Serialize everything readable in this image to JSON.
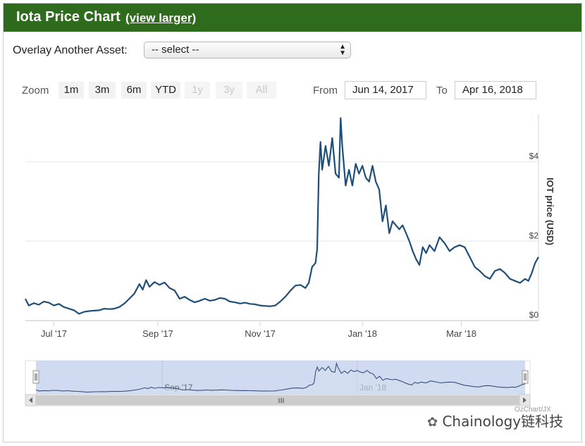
{
  "header": {
    "title": "Iota Price Chart",
    "view_larger": "(view larger)"
  },
  "overlay": {
    "label": "Overlay Another Asset:",
    "selected": "-- select --"
  },
  "zoom": {
    "label": "Zoom",
    "buttons": [
      {
        "label": "1m",
        "enabled": true
      },
      {
        "label": "3m",
        "enabled": true
      },
      {
        "label": "6m",
        "enabled": true
      },
      {
        "label": "YTD",
        "enabled": true
      },
      {
        "label": "1y",
        "enabled": false
      },
      {
        "label": "3y",
        "enabled": false
      },
      {
        "label": "All",
        "enabled": false
      }
    ]
  },
  "range": {
    "from_label": "From",
    "from_value": "Jun 14, 2017",
    "to_label": "To",
    "to_value": "Apr 16, 2018"
  },
  "credits": "OzChart/JX",
  "watermark": "Chainology链科技",
  "chart_data": {
    "type": "line",
    "ylabel": "IOT price (USD)",
    "ylim": [
      0,
      5.2
    ],
    "yticks": [
      {
        "value": 0,
        "label": "$0"
      },
      {
        "value": 2,
        "label": "$2"
      },
      {
        "value": 4,
        "label": "$4"
      }
    ],
    "x_start": "2017-06-14",
    "x_end": "2018-04-16",
    "xticks": [
      {
        "date": "2017-07-01",
        "label": "Jul '17"
      },
      {
        "date": "2017-09-01",
        "label": "Sep '17"
      },
      {
        "date": "2017-11-01",
        "label": "Nov '17"
      },
      {
        "date": "2018-01-01",
        "label": "Jan '18"
      },
      {
        "date": "2018-03-01",
        "label": "Mar '18"
      }
    ],
    "navigator_labels": [
      {
        "date": "2017-09-01",
        "label": "Sep '17"
      },
      {
        "date": "2018-01-01",
        "label": "Jan '18"
      }
    ],
    "grid": true,
    "series": [
      {
        "color": "#1f4e79",
        "points": [
          [
            "2017-06-14",
            0.55
          ],
          [
            "2017-06-16",
            0.38
          ],
          [
            "2017-06-19",
            0.44
          ],
          [
            "2017-06-22",
            0.4
          ],
          [
            "2017-06-25",
            0.48
          ],
          [
            "2017-06-28",
            0.45
          ],
          [
            "2017-07-01",
            0.38
          ],
          [
            "2017-07-04",
            0.42
          ],
          [
            "2017-07-07",
            0.34
          ],
          [
            "2017-07-10",
            0.3
          ],
          [
            "2017-07-13",
            0.26
          ],
          [
            "2017-07-16",
            0.17
          ],
          [
            "2017-07-19",
            0.22
          ],
          [
            "2017-07-22",
            0.24
          ],
          [
            "2017-07-25",
            0.25
          ],
          [
            "2017-07-28",
            0.26
          ],
          [
            "2017-07-31",
            0.3
          ],
          [
            "2017-08-03",
            0.29
          ],
          [
            "2017-08-06",
            0.3
          ],
          [
            "2017-08-09",
            0.34
          ],
          [
            "2017-08-12",
            0.43
          ],
          [
            "2017-08-15",
            0.55
          ],
          [
            "2017-08-18",
            0.68
          ],
          [
            "2017-08-21",
            0.92
          ],
          [
            "2017-08-23",
            0.78
          ],
          [
            "2017-08-25",
            1.02
          ],
          [
            "2017-08-27",
            0.85
          ],
          [
            "2017-08-30",
            0.97
          ],
          [
            "2017-09-02",
            0.9
          ],
          [
            "2017-09-05",
            0.96
          ],
          [
            "2017-09-08",
            0.82
          ],
          [
            "2017-09-11",
            0.76
          ],
          [
            "2017-09-14",
            0.55
          ],
          [
            "2017-09-17",
            0.6
          ],
          [
            "2017-09-20",
            0.52
          ],
          [
            "2017-09-23",
            0.46
          ],
          [
            "2017-09-26",
            0.5
          ],
          [
            "2017-09-29",
            0.55
          ],
          [
            "2017-10-02",
            0.5
          ],
          [
            "2017-10-05",
            0.52
          ],
          [
            "2017-10-08",
            0.57
          ],
          [
            "2017-10-11",
            0.55
          ],
          [
            "2017-10-14",
            0.48
          ],
          [
            "2017-10-17",
            0.46
          ],
          [
            "2017-10-20",
            0.43
          ],
          [
            "2017-10-23",
            0.45
          ],
          [
            "2017-10-26",
            0.42
          ],
          [
            "2017-10-29",
            0.41
          ],
          [
            "2017-11-01",
            0.38
          ],
          [
            "2017-11-04",
            0.37
          ],
          [
            "2017-11-07",
            0.36
          ],
          [
            "2017-11-10",
            0.38
          ],
          [
            "2017-11-13",
            0.48
          ],
          [
            "2017-11-16",
            0.6
          ],
          [
            "2017-11-19",
            0.75
          ],
          [
            "2017-11-22",
            0.88
          ],
          [
            "2017-11-25",
            0.9
          ],
          [
            "2017-11-28",
            0.82
          ],
          [
            "2017-11-30",
            0.95
          ],
          [
            "2017-12-02",
            1.35
          ],
          [
            "2017-12-04",
            1.45
          ],
          [
            "2017-12-05",
            1.8
          ],
          [
            "2017-12-06",
            3.7
          ],
          [
            "2017-12-07",
            4.5
          ],
          [
            "2017-12-08",
            3.8
          ],
          [
            "2017-12-10",
            4.4
          ],
          [
            "2017-12-12",
            3.9
          ],
          [
            "2017-12-14",
            4.6
          ],
          [
            "2017-12-16",
            3.7
          ],
          [
            "2017-12-18",
            3.6
          ],
          [
            "2017-12-19",
            5.1
          ],
          [
            "2017-12-20",
            4.4
          ],
          [
            "2017-12-22",
            3.4
          ],
          [
            "2017-12-24",
            3.8
          ],
          [
            "2017-12-26",
            3.4
          ],
          [
            "2017-12-28",
            3.95
          ],
          [
            "2017-12-30",
            3.7
          ],
          [
            "2018-01-01",
            3.9
          ],
          [
            "2018-01-03",
            3.6
          ],
          [
            "2018-01-05",
            3.5
          ],
          [
            "2018-01-07",
            3.9
          ],
          [
            "2018-01-09",
            3.5
          ],
          [
            "2018-01-11",
            3.3
          ],
          [
            "2018-01-13",
            2.5
          ],
          [
            "2018-01-15",
            2.9
          ],
          [
            "2018-01-17",
            2.2
          ],
          [
            "2018-01-19",
            2.5
          ],
          [
            "2018-01-21",
            2.4
          ],
          [
            "2018-01-23",
            2.3
          ],
          [
            "2018-01-25",
            2.4
          ],
          [
            "2018-01-27",
            2.2
          ],
          [
            "2018-01-29",
            2.0
          ],
          [
            "2018-01-31",
            1.75
          ],
          [
            "2018-02-02",
            1.55
          ],
          [
            "2018-02-04",
            1.4
          ],
          [
            "2018-02-06",
            1.85
          ],
          [
            "2018-02-08",
            1.7
          ],
          [
            "2018-02-10",
            1.9
          ],
          [
            "2018-02-13",
            1.75
          ],
          [
            "2018-02-16",
            2.1
          ],
          [
            "2018-02-19",
            1.95
          ],
          [
            "2018-02-22",
            1.75
          ],
          [
            "2018-02-25",
            1.85
          ],
          [
            "2018-02-28",
            1.9
          ],
          [
            "2018-03-03",
            1.85
          ],
          [
            "2018-03-06",
            1.6
          ],
          [
            "2018-03-09",
            1.35
          ],
          [
            "2018-03-12",
            1.25
          ],
          [
            "2018-03-15",
            1.12
          ],
          [
            "2018-03-18",
            1.05
          ],
          [
            "2018-03-21",
            1.25
          ],
          [
            "2018-03-24",
            1.3
          ],
          [
            "2018-03-27",
            1.2
          ],
          [
            "2018-03-30",
            1.05
          ],
          [
            "2018-04-02",
            1.0
          ],
          [
            "2018-04-05",
            0.95
          ],
          [
            "2018-04-08",
            1.05
          ],
          [
            "2018-04-10",
            1.0
          ],
          [
            "2018-04-12",
            1.2
          ],
          [
            "2018-04-14",
            1.45
          ],
          [
            "2018-04-16",
            1.6
          ]
        ]
      }
    ]
  }
}
